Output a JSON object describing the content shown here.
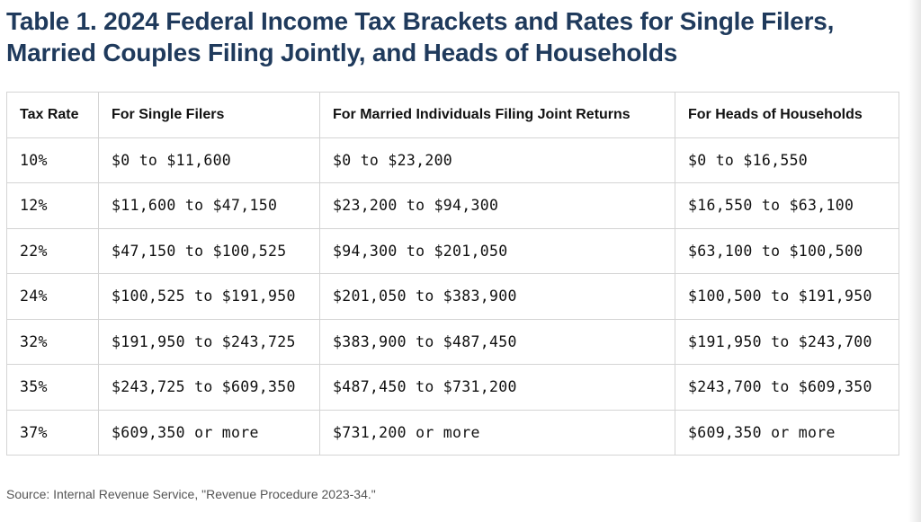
{
  "title": {
    "line1": "Table 1. 2024 Federal Income Tax Brackets and Rates for Single Filers,",
    "line2": "Married Couples Filing Jointly, and Heads of Households"
  },
  "table": {
    "headers": [
      "Tax Rate",
      "For Single Filers",
      "For Married Individuals Filing Joint Returns",
      "For Heads of Households"
    ],
    "rows": [
      [
        "10%",
        "$0 to $11,600",
        "$0 to $23,200",
        "$0 to $16,550"
      ],
      [
        "12%",
        "$11,600 to $47,150",
        "$23,200 to $94,300",
        "$16,550 to $63,100"
      ],
      [
        "22%",
        "$47,150 to $100,525",
        "$94,300 to $201,050",
        "$63,100 to $100,500"
      ],
      [
        "24%",
        "$100,525 to $191,950",
        "$201,050 to $383,900",
        "$100,500 to $191,950"
      ],
      [
        "32%",
        "$191,950 to $243,725",
        "$383,900 to $487,450",
        "$191,950 to $243,700"
      ],
      [
        "35%",
        "$243,725 to $609,350",
        "$487,450 to $731,200",
        "$243,700 to $609,350"
      ],
      [
        "37%",
        "$609,350 or more",
        "$731,200 or more",
        "$609,350 or more"
      ]
    ]
  },
  "source": "Source: Internal Revenue Service, \"Revenue Procedure 2023-34.\"",
  "colors": {
    "title": "#1f3a5c",
    "border": "#d4d4d4",
    "text": "#111111",
    "source": "#555555"
  }
}
